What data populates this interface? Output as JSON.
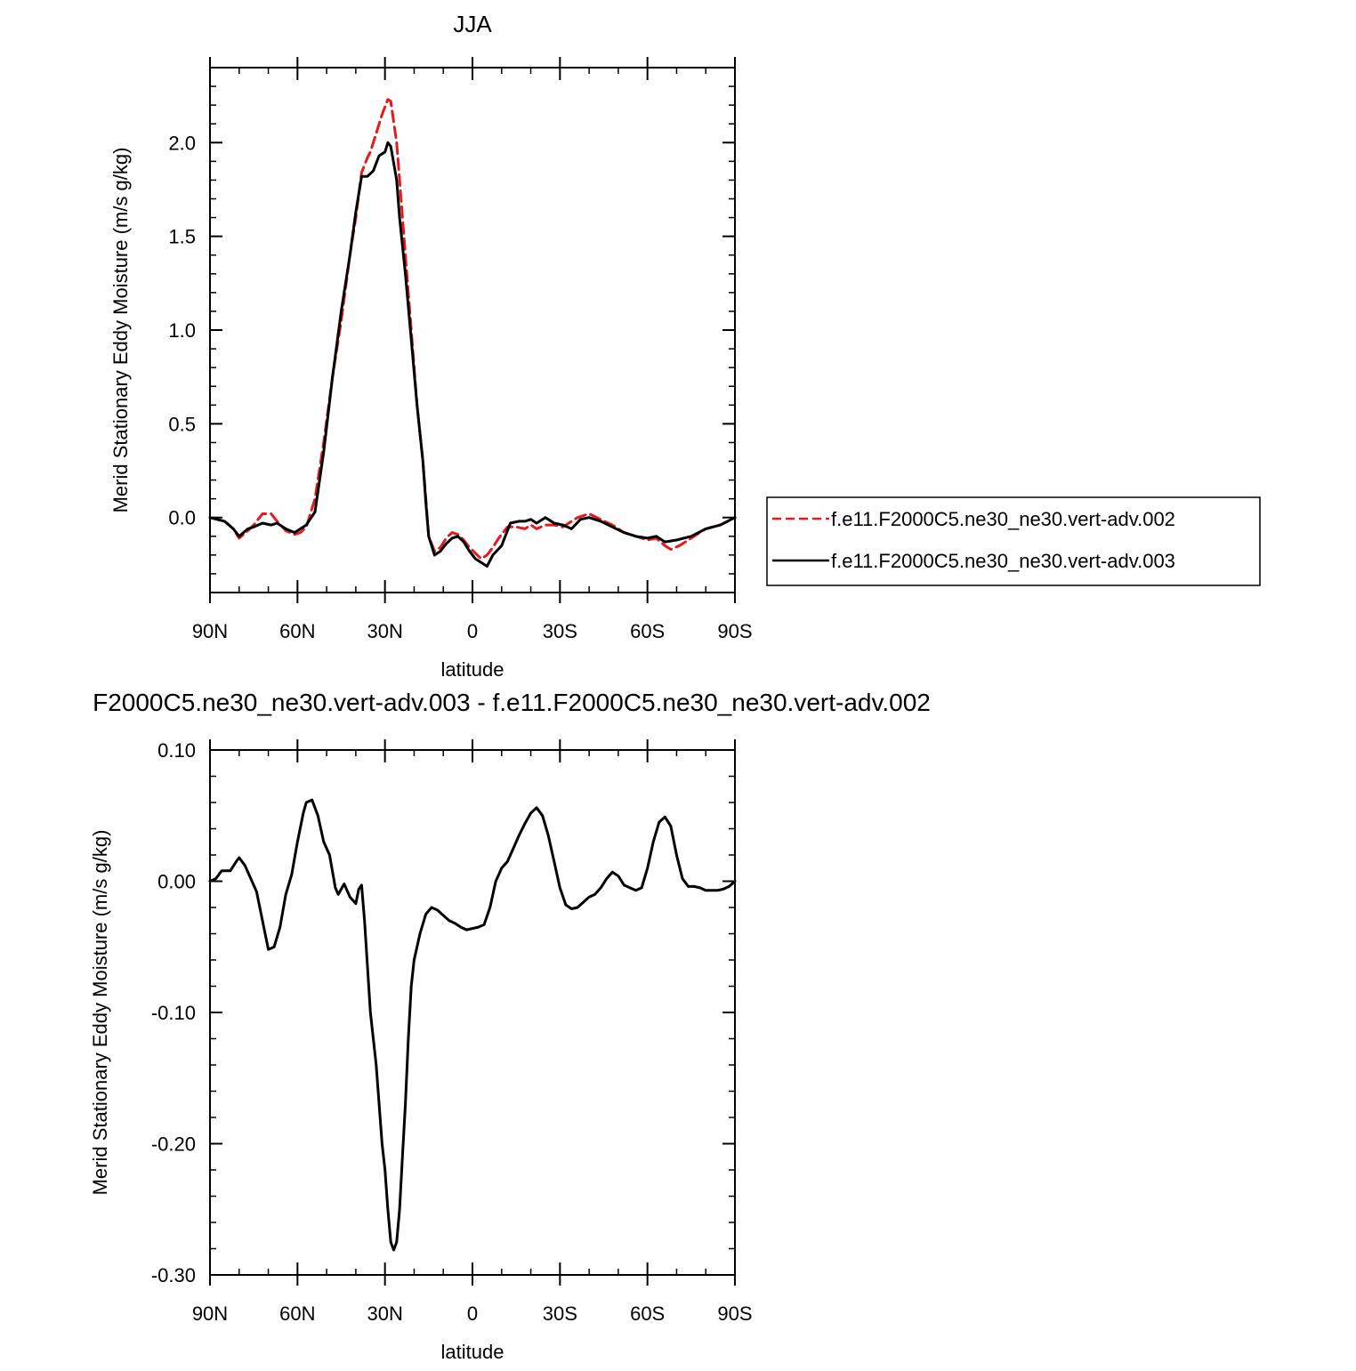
{
  "chart_data": [
    {
      "type": "line",
      "title": "JJA",
      "xlabel": "latitude",
      "ylabel": "Merid Stationary Eddy Moisture (m/s g/kg)",
      "xlim": [
        90,
        -90
      ],
      "ylim": [
        -0.4,
        2.4
      ],
      "x_ticks": [
        90,
        60,
        30,
        0,
        -30,
        -60,
        -90
      ],
      "x_tick_labels": [
        "90N",
        "60N",
        "30N",
        "0",
        "30S",
        "60S",
        "90S"
      ],
      "y_ticks": [
        0.0,
        0.5,
        1.0,
        1.5,
        2.0
      ],
      "y_tick_labels": [
        "0.0",
        "0.5",
        "1.0",
        "1.5",
        "2.0"
      ],
      "legend_position": "right",
      "series": [
        {
          "name": "f.e11.F2000C5.ne30_ne30.vert-adv.002",
          "color": "#e8191c",
          "style": "dashed",
          "points": [
            [
              90,
              0.0
            ],
            [
              85,
              -0.02
            ],
            [
              82,
              -0.06
            ],
            [
              80,
              -0.11
            ],
            [
              77,
              -0.07
            ],
            [
              75,
              -0.04
            ],
            [
              72,
              0.02
            ],
            [
              69,
              0.02
            ],
            [
              67,
              -0.02
            ],
            [
              64,
              -0.07
            ],
            [
              61,
              -0.09
            ],
            [
              59,
              -0.08
            ],
            [
              57,
              -0.05
            ],
            [
              54,
              0.1
            ],
            [
              51,
              0.4
            ],
            [
              48,
              0.75
            ],
            [
              45,
              1.05
            ],
            [
              42,
              1.4
            ],
            [
              40,
              1.6
            ],
            [
              38,
              1.84
            ],
            [
              36,
              1.92
            ],
            [
              35,
              1.95
            ],
            [
              33,
              2.05
            ],
            [
              31,
              2.15
            ],
            [
              29,
              2.23
            ],
            [
              28,
              2.22
            ],
            [
              26,
              2.0
            ],
            [
              25,
              1.8
            ],
            [
              23,
              1.4
            ],
            [
              21,
              1.0
            ],
            [
              19,
              0.6
            ],
            [
              17,
              0.3
            ],
            [
              16,
              0.1
            ],
            [
              15,
              -0.1
            ],
            [
              13,
              -0.18
            ],
            [
              11,
              -0.16
            ],
            [
              9,
              -0.11
            ],
            [
              7,
              -0.08
            ],
            [
              5,
              -0.09
            ],
            [
              3,
              -0.12
            ],
            [
              1,
              -0.16
            ],
            [
              -1,
              -0.19
            ],
            [
              -3,
              -0.22
            ],
            [
              -5,
              -0.2
            ],
            [
              -7,
              -0.16
            ],
            [
              -9,
              -0.11
            ],
            [
              -12,
              -0.05
            ],
            [
              -15,
              -0.05
            ],
            [
              -18,
              -0.06
            ],
            [
              -20,
              -0.04
            ],
            [
              -22,
              -0.06
            ],
            [
              -25,
              -0.04
            ],
            [
              -28,
              -0.04
            ],
            [
              -31,
              -0.05
            ],
            [
              -33,
              -0.03
            ],
            [
              -36,
              0.0
            ],
            [
              -40,
              0.02
            ],
            [
              -44,
              -0.01
            ],
            [
              -48,
              -0.04
            ],
            [
              -52,
              -0.08
            ],
            [
              -56,
              -0.1
            ],
            [
              -60,
              -0.12
            ],
            [
              -63,
              -0.11
            ],
            [
              -66,
              -0.15
            ],
            [
              -68,
              -0.17
            ],
            [
              -71,
              -0.15
            ],
            [
              -75,
              -0.11
            ],
            [
              -80,
              -0.06
            ],
            [
              -85,
              -0.04
            ],
            [
              -90,
              0.0
            ]
          ]
        },
        {
          "name": "f.e11.F2000C5.ne30_ne30.vert-adv.003",
          "color": "#000000",
          "style": "solid",
          "points": [
            [
              90,
              0.0
            ],
            [
              85,
              -0.02
            ],
            [
              82,
              -0.06
            ],
            [
              80,
              -0.1
            ],
            [
              77,
              -0.06
            ],
            [
              75,
              -0.05
            ],
            [
              72,
              -0.03
            ],
            [
              69,
              -0.04
            ],
            [
              67,
              -0.03
            ],
            [
              64,
              -0.06
            ],
            [
              61,
              -0.08
            ],
            [
              59,
              -0.06
            ],
            [
              57,
              -0.04
            ],
            [
              54,
              0.03
            ],
            [
              51,
              0.35
            ],
            [
              48,
              0.75
            ],
            [
              45,
              1.1
            ],
            [
              42,
              1.4
            ],
            [
              40,
              1.63
            ],
            [
              38,
              1.82
            ],
            [
              36,
              1.82
            ],
            [
              34,
              1.85
            ],
            [
              32,
              1.93
            ],
            [
              30,
              1.95
            ],
            [
              29,
              2.0
            ],
            [
              28,
              1.98
            ],
            [
              26,
              1.8
            ],
            [
              25,
              1.6
            ],
            [
              23,
              1.3
            ],
            [
              21,
              0.95
            ],
            [
              19,
              0.6
            ],
            [
              17,
              0.3
            ],
            [
              16,
              0.08
            ],
            [
              15,
              -0.1
            ],
            [
              13,
              -0.2
            ],
            [
              11,
              -0.18
            ],
            [
              9,
              -0.14
            ],
            [
              7,
              -0.11
            ],
            [
              5,
              -0.1
            ],
            [
              3,
              -0.13
            ],
            [
              1,
              -0.18
            ],
            [
              -1,
              -0.22
            ],
            [
              -3,
              -0.24
            ],
            [
              -5,
              -0.26
            ],
            [
              -7,
              -0.2
            ],
            [
              -10,
              -0.15
            ],
            [
              -13,
              -0.03
            ],
            [
              -16,
              -0.02
            ],
            [
              -18,
              -0.02
            ],
            [
              -20,
              -0.01
            ],
            [
              -22,
              -0.03
            ],
            [
              -25,
              0.0
            ],
            [
              -28,
              -0.03
            ],
            [
              -31,
              -0.04
            ],
            [
              -34,
              -0.06
            ],
            [
              -37,
              -0.01
            ],
            [
              -40,
              0.0
            ],
            [
              -44,
              -0.02
            ],
            [
              -48,
              -0.05
            ],
            [
              -52,
              -0.08
            ],
            [
              -56,
              -0.1
            ],
            [
              -60,
              -0.11
            ],
            [
              -63,
              -0.1
            ],
            [
              -66,
              -0.13
            ],
            [
              -70,
              -0.12
            ],
            [
              -75,
              -0.1
            ],
            [
              -80,
              -0.06
            ],
            [
              -85,
              -0.04
            ],
            [
              -90,
              0.0
            ]
          ]
        }
      ]
    },
    {
      "type": "line",
      "title": "F2000C5.ne30_ne30.vert-adv.003 - f.e11.F2000C5.ne30_ne30.vert-adv.002",
      "xlabel": "latitude",
      "ylabel": "Merid Stationary Eddy Moisture (m/s g/kg)",
      "xlim": [
        90,
        -90
      ],
      "ylim": [
        -0.3,
        0.1
      ],
      "x_ticks": [
        90,
        60,
        30,
        0,
        -30,
        -60,
        -90
      ],
      "x_tick_labels": [
        "90N",
        "60N",
        "30N",
        "0",
        "30S",
        "60S",
        "90S"
      ],
      "y_ticks": [
        0.1,
        0.0,
        -0.1,
        -0.2,
        -0.3
      ],
      "y_tick_labels": [
        "0.10",
        "0.00",
        "-0.10",
        "-0.20",
        "-0.30"
      ],
      "series": [
        {
          "color": "#000000",
          "style": "solid",
          "points": [
            [
              90,
              0.0
            ],
            [
              88,
              0.002
            ],
            [
              86,
              0.008
            ],
            [
              83,
              0.008
            ],
            [
              81,
              0.015
            ],
            [
              80,
              0.018
            ],
            [
              78,
              0.012
            ],
            [
              76,
              0.002
            ],
            [
              74,
              -0.008
            ],
            [
              72,
              -0.03
            ],
            [
              70,
              -0.052
            ],
            [
              68,
              -0.05
            ],
            [
              66,
              -0.035
            ],
            [
              64,
              -0.01
            ],
            [
              62,
              0.005
            ],
            [
              60,
              0.03
            ],
            [
              58,
              0.052
            ],
            [
              57,
              0.06
            ],
            [
              55,
              0.062
            ],
            [
              53,
              0.05
            ],
            [
              51,
              0.03
            ],
            [
              49,
              0.02
            ],
            [
              47,
              -0.005
            ],
            [
              46,
              -0.01
            ],
            [
              44,
              -0.002
            ],
            [
              42,
              -0.012
            ],
            [
              40,
              -0.017
            ],
            [
              39,
              -0.006
            ],
            [
              38,
              -0.003
            ],
            [
              37,
              -0.03
            ],
            [
              35,
              -0.1
            ],
            [
              33,
              -0.14
            ],
            [
              31,
              -0.2
            ],
            [
              30,
              -0.22
            ],
            [
              29,
              -0.25
            ],
            [
              28,
              -0.275
            ],
            [
              27,
              -0.281
            ],
            [
              26,
              -0.275
            ],
            [
              25,
              -0.25
            ],
            [
              24,
              -0.21
            ],
            [
              23,
              -0.17
            ],
            [
              22,
              -0.12
            ],
            [
              21,
              -0.08
            ],
            [
              20,
              -0.06
            ],
            [
              18,
              -0.04
            ],
            [
              16,
              -0.025
            ],
            [
              14,
              -0.02
            ],
            [
              12,
              -0.022
            ],
            [
              10,
              -0.026
            ],
            [
              8,
              -0.03
            ],
            [
              6,
              -0.032
            ],
            [
              4,
              -0.035
            ],
            [
              2,
              -0.037
            ],
            [
              0,
              -0.036
            ],
            [
              -2,
              -0.035
            ],
            [
              -4,
              -0.033
            ],
            [
              -6,
              -0.02
            ],
            [
              -8,
              0.0
            ],
            [
              -10,
              0.01
            ],
            [
              -12,
              0.015
            ],
            [
              -14,
              0.025
            ],
            [
              -16,
              0.035
            ],
            [
              -18,
              0.044
            ],
            [
              -20,
              0.052
            ],
            [
              -22,
              0.056
            ],
            [
              -24,
              0.05
            ],
            [
              -26,
              0.035
            ],
            [
              -28,
              0.015
            ],
            [
              -30,
              -0.005
            ],
            [
              -32,
              -0.018
            ],
            [
              -34,
              -0.021
            ],
            [
              -36,
              -0.02
            ],
            [
              -38,
              -0.016
            ],
            [
              -40,
              -0.012
            ],
            [
              -42,
              -0.01
            ],
            [
              -44,
              -0.005
            ],
            [
              -46,
              0.002
            ],
            [
              -48,
              0.007
            ],
            [
              -50,
              0.004
            ],
            [
              -52,
              -0.003
            ],
            [
              -54,
              -0.005
            ],
            [
              -56,
              -0.007
            ],
            [
              -58,
              -0.005
            ],
            [
              -60,
              0.01
            ],
            [
              -62,
              0.03
            ],
            [
              -64,
              0.045
            ],
            [
              -66,
              0.049
            ],
            [
              -68,
              0.042
            ],
            [
              -70,
              0.02
            ],
            [
              -72,
              0.002
            ],
            [
              -74,
              -0.004
            ],
            [
              -76,
              -0.004
            ],
            [
              -78,
              -0.005
            ],
            [
              -80,
              -0.007
            ],
            [
              -82,
              -0.007
            ],
            [
              -84,
              -0.007
            ],
            [
              -86,
              -0.006
            ],
            [
              -88,
              -0.004
            ],
            [
              -90,
              0.0
            ]
          ]
        }
      ]
    }
  ]
}
